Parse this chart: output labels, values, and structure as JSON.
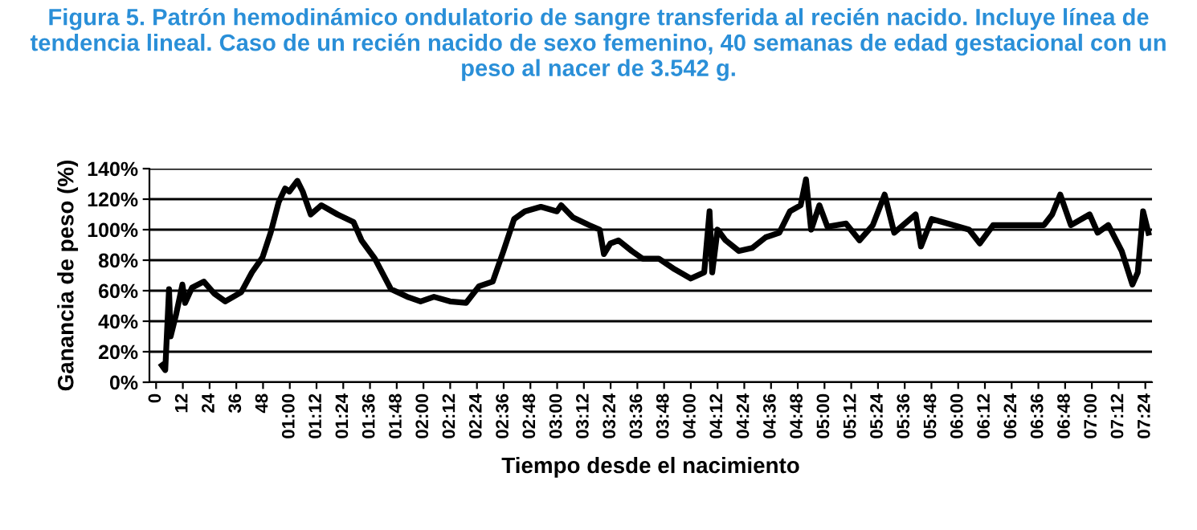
{
  "chart_data": {
    "type": "line",
    "title": "Figura 5. Patrón hemodinámico ondulatorio de sangre transferida al recién nacido. Incluye línea de tendencia lineal. Caso de un recién nacido de sexo femenino, 40 semanas de edad gestacional con un peso al nacer de 3.542 g.",
    "xlabel": "Tiempo desde el nacimiento",
    "ylabel": "Ganancia de peso (%)",
    "x": [
      2.6,
      4.1,
      5.8,
      6.5,
      8.9,
      11.8,
      13,
      16.1,
      21.4,
      26.2,
      31,
      38.2,
      43,
      47.8,
      51.4,
      55,
      57.9,
      59.8,
      63.4,
      65.8,
      69.4,
      74.2,
      81.4,
      88.6,
      92.2,
      98.2,
      105.4,
      112.7,
      118.7,
      124.7,
      131.9,
      139.1,
      145,
      151.1,
      155.9,
      160.7,
      165.5,
      172.7,
      179.9,
      181.8,
      187.1,
      194.3,
      199.1,
      201,
      203.9,
      207.5,
      213.5,
      218.4,
      225.6,
      232.8,
      240,
      246,
      248.4,
      249.6,
      252,
      255.6,
      261.6,
      267.6,
      273.6,
      279.7,
      284.5,
      289.3,
      291.7,
      294,
      297.7,
      301.3,
      309.7,
      315.7,
      321.7,
      327,
      331.3,
      340.9,
      343.3,
      348.1,
      357.7,
      364.9,
      369.7,
      375.7,
      386.5,
      398.5,
      402.2,
      405.8,
      410.6,
      419,
      422.6,
      427.4,
      433.4,
      438.2,
      440.6,
      443,
      445.4
    ],
    "series": [
      {
        "color": "#000000",
        "values": [
          11,
          8,
          61,
          30,
          44,
          64,
          52,
          62,
          66,
          58,
          53,
          59,
          72,
          82,
          98,
          118,
          127,
          125,
          132,
          125,
          110,
          116,
          110,
          105,
          93,
          81,
          61,
          56,
          53,
          56,
          53,
          52,
          63,
          66,
          86,
          107,
          112,
          115,
          112,
          116,
          108,
          103,
          100,
          84,
          91,
          93,
          86,
          81,
          81,
          74,
          68,
          72,
          112,
          72,
          100,
          93,
          86,
          88,
          95,
          98,
          112,
          116,
          133,
          100,
          116,
          102,
          104,
          93,
          103,
          123,
          98,
          110,
          89,
          107,
          103,
          100,
          91,
          103,
          103,
          103,
          110,
          123,
          103,
          110,
          98,
          103,
          86,
          64,
          72,
          112,
          98
        ]
      }
    ],
    "xlim": [
      -3,
      447
    ],
    "xticks": [
      0,
      12,
      24,
      36,
      48,
      {
        "value": 60,
        "label": "01:00"
      },
      {
        "value": 72,
        "label": "01:12"
      },
      {
        "value": 84,
        "label": "01:24"
      },
      {
        "value": 96,
        "label": "01:36"
      },
      {
        "value": 108,
        "label": "01:48"
      },
      {
        "value": 120,
        "label": "02:00"
      },
      {
        "value": 132,
        "label": "02:12"
      },
      {
        "value": 144,
        "label": "02:24"
      },
      {
        "value": 156,
        "label": "02:36"
      },
      {
        "value": 168,
        "label": "02:48"
      },
      {
        "value": 180,
        "label": "03:00"
      },
      {
        "value": 192,
        "label": "03:12"
      },
      {
        "value": 204,
        "label": "03:24"
      },
      {
        "value": 216,
        "label": "03:36"
      },
      {
        "value": 228,
        "label": "03:48"
      },
      {
        "value": 240,
        "label": "04:00"
      },
      {
        "value": 252,
        "label": "04:12"
      },
      {
        "value": 264,
        "label": "04:24"
      },
      {
        "value": 276,
        "label": "04:36"
      },
      {
        "value": 288,
        "label": "04:48"
      },
      {
        "value": 300,
        "label": "05:00"
      },
      {
        "value": 312,
        "label": "05:12"
      },
      {
        "value": 324,
        "label": "05:24"
      },
      {
        "value": 336,
        "label": "05:36"
      },
      {
        "value": 348,
        "label": "05:48"
      },
      {
        "value": 360,
        "label": "06:00"
      },
      {
        "value": 372,
        "label": "06:12"
      },
      {
        "value": 384,
        "label": "06:24"
      },
      {
        "value": 396,
        "label": "06:36"
      },
      {
        "value": 408,
        "label": "06:48"
      },
      {
        "value": 420,
        "label": "07:00"
      },
      {
        "value": 432,
        "label": "07:12"
      },
      {
        "value": 444,
        "label": "07:24"
      }
    ],
    "ylim": [
      0,
      140
    ],
    "yticks": [
      {
        "value": 0,
        "label": "0%"
      },
      {
        "value": 20,
        "label": "20%"
      },
      {
        "value": 40,
        "label": "40%"
      },
      {
        "value": 60,
        "label": "60%"
      },
      {
        "value": 80,
        "label": "80%"
      },
      {
        "value": 100,
        "label": "100%"
      },
      {
        "value": 120,
        "label": "120%"
      },
      {
        "value": 140,
        "label": "140%"
      }
    ],
    "grid": "y",
    "marker": "none",
    "line_style": "solid",
    "legend": false
  }
}
